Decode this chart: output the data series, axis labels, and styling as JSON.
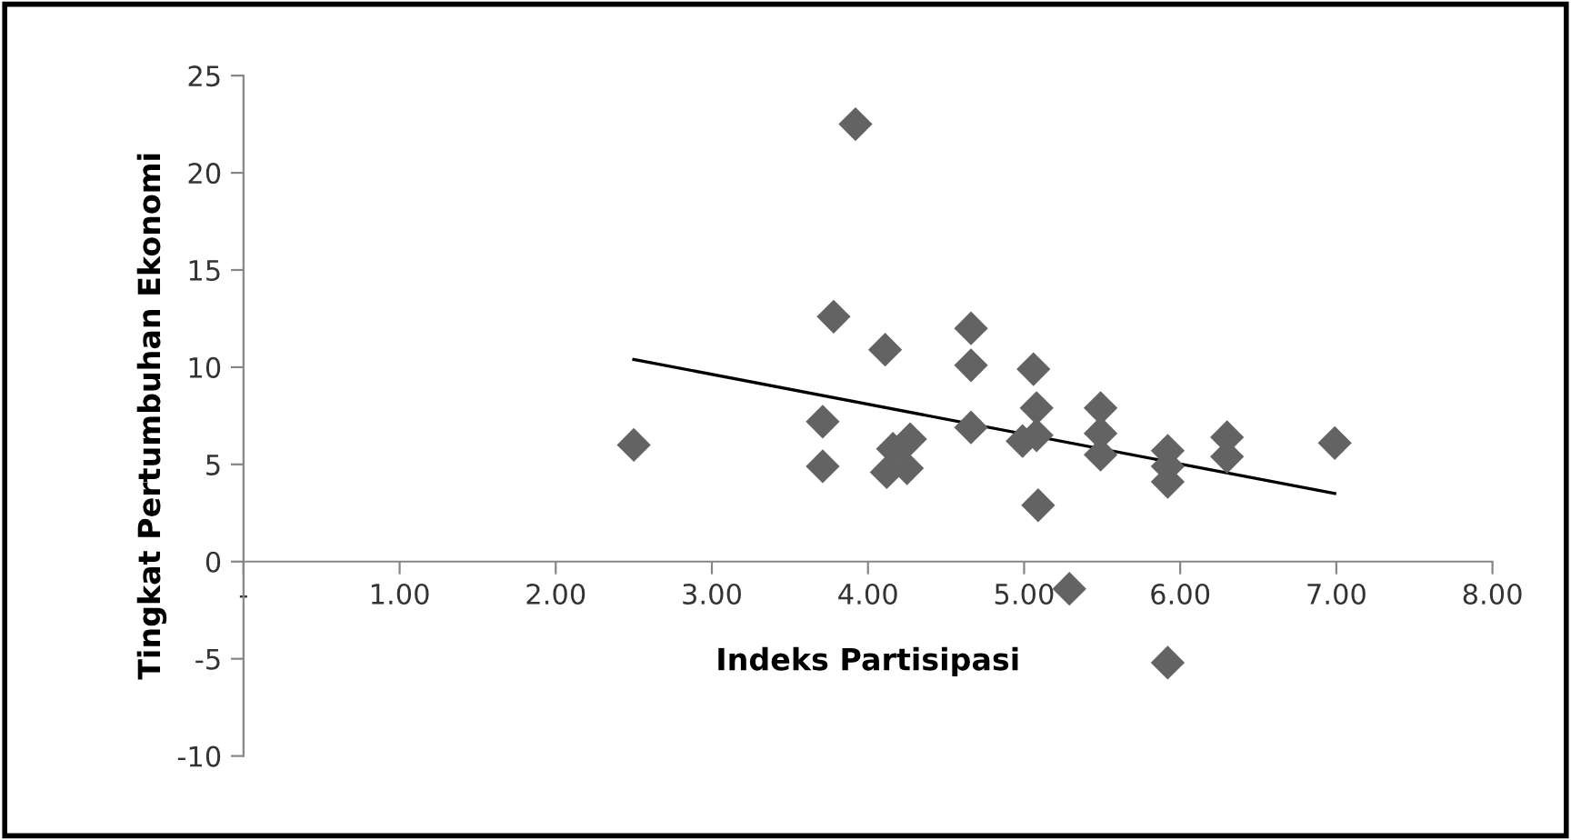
{
  "chart_data": {
    "type": "scatter",
    "xlabel": "Indeks Partisipasi",
    "ylabel": "Tingkat Pertumbuhan Ekonomi",
    "xlim": [
      0,
      8
    ],
    "ylim": [
      -10,
      25
    ],
    "xticks": [
      {
        "value": 0,
        "label": "-"
      },
      {
        "value": 1,
        "label": "1.00"
      },
      {
        "value": 2,
        "label": "2.00"
      },
      {
        "value": 3,
        "label": "3.00"
      },
      {
        "value": 4,
        "label": "4.00"
      },
      {
        "value": 5,
        "label": "5.00"
      },
      {
        "value": 6,
        "label": "6.00"
      },
      {
        "value": 7,
        "label": "7.00"
      },
      {
        "value": 8,
        "label": "8.00"
      }
    ],
    "yticks": [
      -10,
      -5,
      0,
      5,
      10,
      15,
      20,
      25
    ],
    "grid": false,
    "legend": false,
    "marker": "diamond",
    "series": [
      {
        "color": "#636363",
        "x": [
          2.5,
          3.92,
          3.78,
          4.11,
          4.66,
          4.66,
          5.06,
          3.71,
          3.71,
          4.66,
          5.08,
          4.99,
          5.08,
          5.09,
          5.49,
          5.49,
          5.49,
          4.12,
          4.25,
          4.27,
          4.16,
          5.92,
          5.92,
          5.92,
          6.3,
          6.3,
          5.29,
          5.92,
          6.99
        ],
        "values": [
          6.0,
          22.5,
          12.6,
          10.9,
          12.0,
          10.1,
          9.9,
          7.2,
          4.9,
          6.9,
          7.9,
          6.2,
          6.5,
          2.9,
          7.9,
          6.6,
          5.5,
          4.6,
          4.8,
          6.3,
          5.8,
          5.7,
          4.9,
          4.1,
          6.4,
          5.4,
          -1.4,
          -5.2,
          6.1
        ]
      },
      {
        "type": "line",
        "color": "#000000",
        "marker": "none",
        "line_style": "solid",
        "x": [
          2.5,
          6.99
        ],
        "values": [
          10.4,
          3.5
        ]
      }
    ]
  }
}
